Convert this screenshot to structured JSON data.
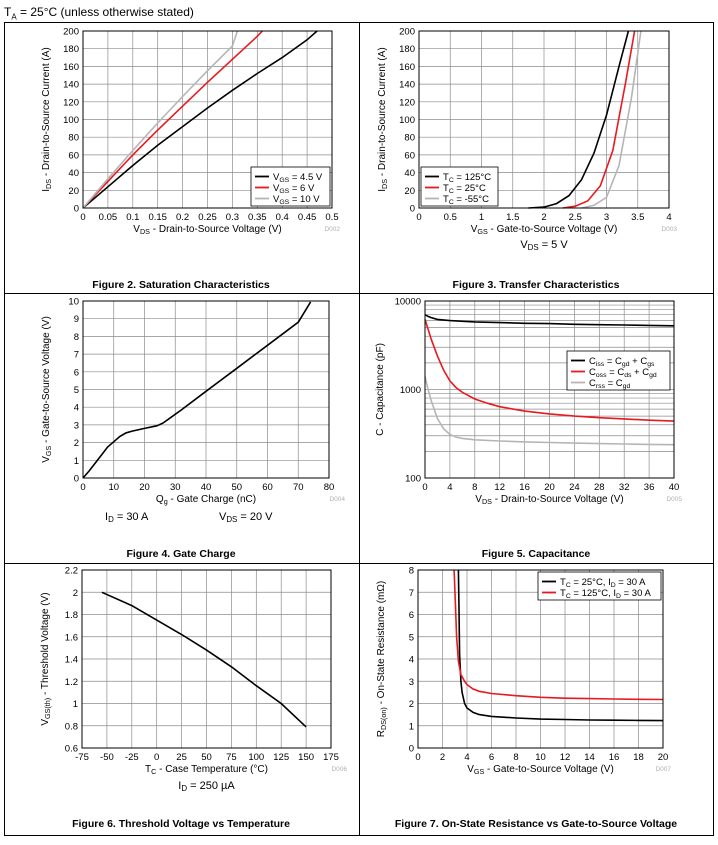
{
  "page": {
    "header_text": "T",
    "header_sub": "A",
    "header_rest": " = 25°C (unless otherwise stated)"
  },
  "chart_data": [
    {
      "id": "fig2",
      "type": "line",
      "title": "Figure 2. Saturation Characteristics",
      "xlabel": "V_DS - Drain-to-Source Voltage (V)",
      "ylabel": "I_DS - Drain-to-Source Current (A)",
      "xlim": [
        0,
        0.5
      ],
      "ylim": [
        0,
        200
      ],
      "yscale": "linear",
      "xticks": [
        0,
        0.05,
        0.1,
        0.15,
        0.2,
        0.25,
        0.3,
        0.35,
        0.4,
        0.45,
        0.5
      ],
      "xtick_labels": [
        "0",
        "0.05",
        "0.1",
        "0.15",
        "0.2",
        "0.25",
        "0.3",
        "0.35",
        "0.4",
        "0.45",
        "0.5"
      ],
      "yticks": [
        0,
        20,
        40,
        60,
        80,
        100,
        120,
        140,
        160,
        180,
        200
      ],
      "ytick_labels": [
        "0",
        "20",
        "40",
        "60",
        "80",
        "100",
        "120",
        "140",
        "160",
        "180",
        "200"
      ],
      "grid": true,
      "code": "D002",
      "legend": {
        "position": "bottom-right"
      },
      "series": [
        {
          "name": "V_GS = 4.5 V",
          "color": "#000000",
          "x": [
            0,
            0.05,
            0.1,
            0.15,
            0.2,
            0.25,
            0.3,
            0.35,
            0.4,
            0.45,
            0.47
          ],
          "y": [
            0,
            24,
            48,
            71,
            92,
            113,
            133,
            152,
            170,
            190,
            200
          ]
        },
        {
          "name": "V_GS = 6 V",
          "color": "#e8191f",
          "x": [
            0,
            0.05,
            0.1,
            0.15,
            0.2,
            0.25,
            0.3,
            0.35,
            0.36
          ],
          "y": [
            0,
            30,
            60,
            88,
            115,
            142,
            168,
            194,
            200
          ]
        },
        {
          "name": "V_GS = 10 V",
          "color": "#b5b5b5",
          "x": [
            0,
            0.05,
            0.1,
            0.15,
            0.2,
            0.25,
            0.3,
            0.31
          ],
          "y": [
            0,
            33,
            65,
            96,
            126,
            155,
            183,
            200
          ]
        }
      ]
    },
    {
      "id": "fig3",
      "type": "line",
      "title": "Figure 3. Transfer Characteristics",
      "xlabel": "V_GS - Gate-to-Source Voltage (V)",
      "ylabel": "I_DS - Drain-to-Source Current (A)",
      "xlim": [
        0,
        4
      ],
      "ylim": [
        0,
        200
      ],
      "yscale": "linear",
      "xticks": [
        0,
        0.5,
        1,
        1.5,
        2,
        2.5,
        3,
        3.5,
        4
      ],
      "xtick_labels": [
        "0",
        "0.5",
        "1",
        "1.5",
        "2",
        "2.5",
        "3",
        "3.5",
        "4"
      ],
      "yticks": [
        0,
        20,
        40,
        60,
        80,
        100,
        120,
        140,
        160,
        180,
        200
      ],
      "ytick_labels": [
        "0",
        "20",
        "40",
        "60",
        "80",
        "100",
        "120",
        "140",
        "160",
        "180",
        "200"
      ],
      "grid": true,
      "code": "D003",
      "note": "V_DS = 5 V",
      "legend": {
        "position": "bottom-left"
      },
      "series": [
        {
          "name": "T_C = 125°C",
          "color": "#000000",
          "x": [
            1.75,
            2,
            2.2,
            2.4,
            2.6,
            2.8,
            3,
            3.2,
            3.35
          ],
          "y": [
            0,
            1,
            5,
            14,
            32,
            62,
            105,
            160,
            200
          ]
        },
        {
          "name": "T_C = 25°C",
          "color": "#e8191f",
          "x": [
            2.3,
            2.5,
            2.7,
            2.9,
            3.1,
            3.3,
            3.45
          ],
          "y": [
            0,
            2,
            8,
            25,
            65,
            140,
            200
          ]
        },
        {
          "name": "T_C = -55°C",
          "color": "#b5b5b5",
          "x": [
            2.6,
            2.8,
            3,
            3.2,
            3.4,
            3.55
          ],
          "y": [
            0,
            3,
            12,
            48,
            125,
            200
          ]
        }
      ]
    },
    {
      "id": "fig4",
      "type": "line",
      "title": "Figure 4. Gate Charge",
      "xlabel": "Q_g - Gate Charge (nC)",
      "ylabel": "V_GS - Gate-to-Source Voltage (V)",
      "xlim": [
        0,
        80
      ],
      "ylim": [
        0,
        10
      ],
      "yscale": "linear",
      "xticks": [
        0,
        10,
        20,
        30,
        40,
        50,
        60,
        70,
        80
      ],
      "xtick_labels": [
        "0",
        "10",
        "20",
        "30",
        "40",
        "50",
        "60",
        "70",
        "80"
      ],
      "yticks": [
        0,
        1,
        2,
        3,
        4,
        5,
        6,
        7,
        8,
        9,
        10
      ],
      "ytick_labels": [
        "0",
        "1",
        "2",
        "3",
        "4",
        "5",
        "6",
        "7",
        "8",
        "9",
        "10"
      ],
      "grid": true,
      "code": "D004",
      "note_left": "I_D = 30 A",
      "note_right": "V_DS = 20 V",
      "series": [
        {
          "name": "V_GS",
          "color": "#000000",
          "x": [
            0,
            2,
            4,
            6,
            8,
            10,
            12,
            14,
            16,
            20,
            24,
            26,
            28,
            32,
            40,
            50,
            60,
            70,
            74
          ],
          "y": [
            0,
            0.4,
            0.85,
            1.3,
            1.75,
            2.05,
            2.35,
            2.55,
            2.65,
            2.8,
            2.95,
            3.1,
            3.35,
            3.85,
            4.9,
            6.2,
            7.5,
            8.8,
            9.95
          ]
        }
      ]
    },
    {
      "id": "fig5",
      "type": "line",
      "title": "Figure 5. Capacitance",
      "xlabel": "V_DS - Drain-to-Source Voltage (V)",
      "ylabel": "C - Capacitance (pF)",
      "xlim": [
        0,
        40
      ],
      "ylim": [
        100,
        10000
      ],
      "yscale": "log",
      "xticks": [
        0,
        4,
        8,
        12,
        16,
        20,
        24,
        28,
        32,
        36,
        40
      ],
      "xtick_labels": [
        "0",
        "4",
        "8",
        "12",
        "16",
        "20",
        "24",
        "28",
        "32",
        "36",
        "40"
      ],
      "yticks": [
        100,
        1000,
        10000
      ],
      "ytick_labels": [
        "100",
        "1000",
        "10000"
      ],
      "grid": true,
      "code": "D005",
      "legend": {
        "position": "right"
      },
      "series": [
        {
          "name": "C_iss = C_gd + C_gs",
          "color": "#000000",
          "x": [
            0,
            0.5,
            1,
            2,
            4,
            8,
            12,
            16,
            20,
            24,
            28,
            32,
            36,
            40
          ],
          "y": [
            7000,
            6700,
            6500,
            6200,
            6000,
            5800,
            5700,
            5600,
            5550,
            5450,
            5400,
            5350,
            5300,
            5250
          ]
        },
        {
          "name": "C_oss = C_ds + C_gd",
          "color": "#e8191f",
          "x": [
            0,
            0.5,
            1,
            2,
            3,
            4,
            5,
            6,
            8,
            10,
            12,
            16,
            20,
            24,
            28,
            32,
            36,
            40
          ],
          "y": [
            6200,
            4800,
            3700,
            2400,
            1650,
            1250,
            1050,
            930,
            780,
            700,
            640,
            570,
            530,
            500,
            480,
            465,
            450,
            440
          ]
        },
        {
          "name": "C_rss = C_gd",
          "color": "#b5b5b5",
          "x": [
            0,
            0.5,
            1,
            2,
            3,
            4,
            5,
            6,
            8,
            12,
            16,
            20,
            24,
            28,
            32,
            36,
            40
          ],
          "y": [
            1400,
            1000,
            750,
            470,
            360,
            310,
            290,
            280,
            270,
            262,
            256,
            252,
            248,
            245,
            242,
            240,
            238
          ]
        }
      ]
    },
    {
      "id": "fig6",
      "type": "line",
      "title": "Figure 6. Threshold Voltage vs Temperature",
      "xlabel": "T_C - Case Temperature (°C)",
      "ylabel": "V_GS(th) - Threshold Voltage (V)",
      "xlim": [
        -75,
        175
      ],
      "ylim": [
        0.6,
        2.2
      ],
      "yscale": "linear",
      "xticks": [
        -75,
        -50,
        -25,
        0,
        25,
        50,
        75,
        100,
        125,
        150,
        175
      ],
      "xtick_labels": [
        "-75",
        "-50",
        "-25",
        "0",
        "25",
        "50",
        "75",
        "100",
        "125",
        "150",
        "175"
      ],
      "yticks": [
        0.6,
        0.8,
        1,
        1.2,
        1.4,
        1.6,
        1.8,
        2,
        2.2
      ],
      "ytick_labels": [
        "0.6",
        "0.8",
        "1",
        "1.2",
        "1.4",
        "1.6",
        "1.8",
        "2",
        "2.2"
      ],
      "grid": true,
      "code": "D006",
      "note": "I_D = 250 µA",
      "series": [
        {
          "name": "V_GS(th)",
          "color": "#000000",
          "x": [
            -55,
            -25,
            0,
            25,
            50,
            75,
            100,
            125,
            150
          ],
          "y": [
            2.0,
            1.88,
            1.75,
            1.62,
            1.48,
            1.33,
            1.16,
            1.0,
            0.79
          ]
        }
      ]
    },
    {
      "id": "fig7",
      "type": "line",
      "title": "Figure 7. On-State Resistance vs Gate-to-Source Voltage",
      "xlabel": "V_GS - Gate-to-Source Voltage (V)",
      "ylabel": "R_DS(on) - On-State Resistance (mΩ)",
      "xlim": [
        0,
        20
      ],
      "ylim": [
        0,
        8
      ],
      "yscale": "linear",
      "xticks": [
        0,
        2,
        4,
        6,
        8,
        10,
        12,
        14,
        16,
        18,
        20
      ],
      "xtick_labels": [
        "0",
        "2",
        "4",
        "6",
        "8",
        "10",
        "12",
        "14",
        "16",
        "18",
        "20"
      ],
      "yticks": [
        0,
        1,
        2,
        3,
        4,
        5,
        6,
        7,
        8
      ],
      "ytick_labels": [
        "0",
        "1",
        "2",
        "3",
        "4",
        "5",
        "6",
        "7",
        "8"
      ],
      "grid": true,
      "code": "D007",
      "legend": {
        "position": "top-right"
      },
      "series": [
        {
          "name": "T_C = 25°C, I_D = 30 A",
          "color": "#000000",
          "x": [
            3.3,
            3.35,
            3.4,
            3.5,
            3.6,
            3.8,
            4,
            4.5,
            5,
            6,
            8,
            10,
            12,
            14,
            16,
            18,
            20
          ],
          "y": [
            8,
            6.2,
            4.2,
            3.0,
            2.5,
            2.0,
            1.8,
            1.6,
            1.5,
            1.42,
            1.35,
            1.3,
            1.28,
            1.26,
            1.25,
            1.24,
            1.23
          ]
        },
        {
          "name": "T_C = 125°C, I_D = 30 A",
          "color": "#e8191f",
          "x": [
            2.95,
            3.05,
            3.15,
            3.3,
            3.5,
            3.8,
            4,
            4.5,
            5,
            6,
            8,
            10,
            12,
            14,
            16,
            18,
            20
          ],
          "y": [
            8,
            6.5,
            5.0,
            3.9,
            3.3,
            3.0,
            2.85,
            2.65,
            2.55,
            2.45,
            2.35,
            2.28,
            2.24,
            2.22,
            2.2,
            2.19,
            2.18
          ]
        }
      ]
    }
  ]
}
